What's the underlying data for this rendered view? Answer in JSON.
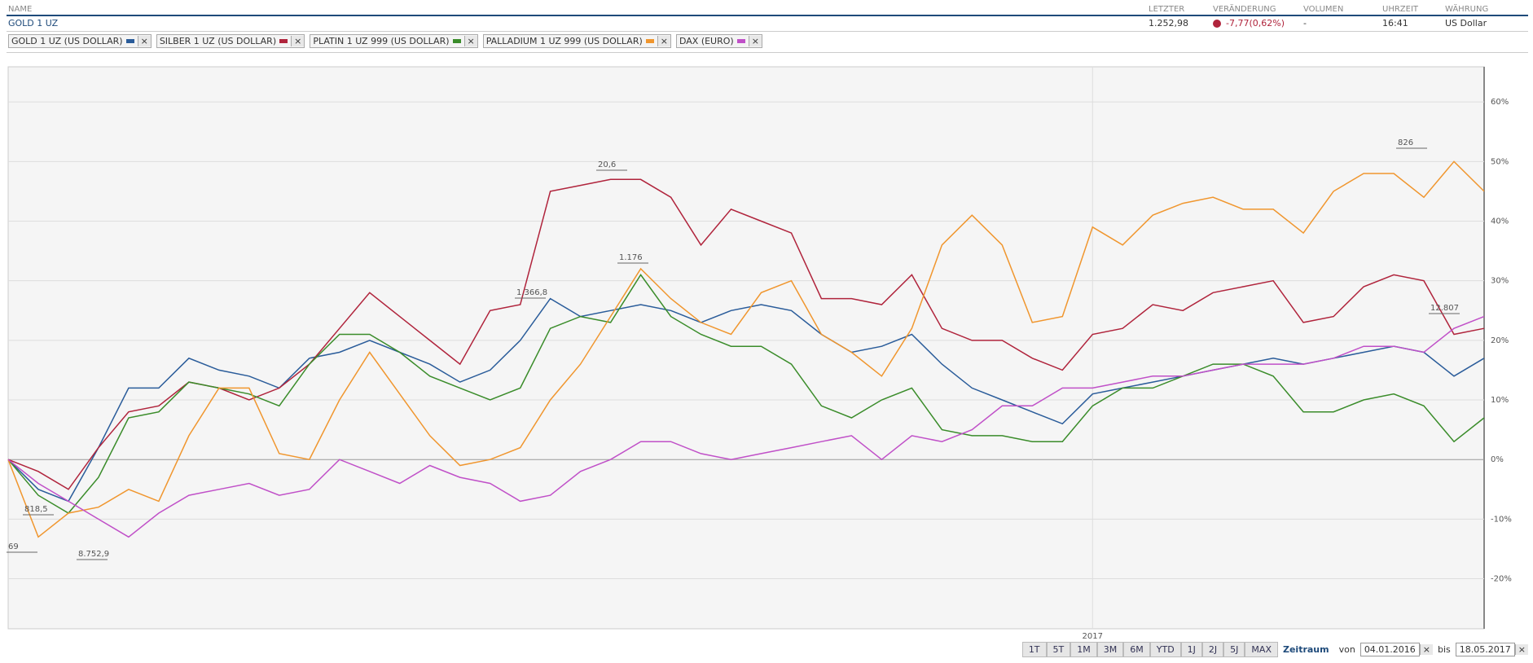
{
  "header": {
    "columns": [
      "NAME",
      "LETZTER",
      "VERÄNDERUNG",
      "VOLUMEN",
      "UHRZEIT",
      "WÄHRUNG"
    ],
    "row": [
      "GOLD 1 UZ",
      "1.252,98",
      "-7,77(0,62%)",
      "-",
      "16:41",
      "US Dollar"
    ]
  },
  "chart_data": {
    "type": "line",
    "categories": [
      null,
      null,
      null,
      null,
      null,
      null,
      null,
      null,
      null,
      null,
      null,
      null,
      null,
      null,
      null,
      null,
      null,
      null,
      null,
      null,
      null,
      null,
      null,
      null,
      null,
      null,
      null,
      null,
      null,
      null,
      null,
      null,
      null,
      null,
      null,
      null,
      "2017",
      null,
      null,
      null,
      null,
      null,
      null,
      null,
      null,
      null,
      null,
      null,
      null,
      null
    ],
    "series": [
      {
        "name": "GOLD 1 UZ (US DOLLAR)",
        "color": "#2a5c9a",
        "values": [
          0,
          -5,
          -7,
          2,
          12,
          12,
          17,
          15,
          14,
          12,
          17,
          18,
          20,
          18,
          16,
          13,
          15,
          20,
          27,
          24,
          25,
          26,
          25,
          23,
          25,
          26,
          25,
          21,
          18,
          19,
          21,
          16,
          12,
          10,
          8,
          6,
          11,
          12,
          13,
          14,
          15,
          16,
          17,
          16,
          17,
          18,
          19,
          18,
          14,
          17
        ]
      },
      {
        "name": "SILBER 1 UZ (US DOLLAR)",
        "color": "#b0243c",
        "values": [
          0,
          -2,
          -5,
          2,
          8,
          9,
          13,
          12,
          10,
          12,
          16,
          22,
          28,
          24,
          20,
          16,
          25,
          26,
          45,
          46,
          47,
          47,
          44,
          36,
          42,
          40,
          38,
          27,
          27,
          26,
          31,
          22,
          20,
          20,
          17,
          15,
          21,
          22,
          26,
          25,
          28,
          29,
          30,
          23,
          24,
          29,
          31,
          30,
          21,
          22
        ]
      },
      {
        "name": "PLATIN 1 UZ 999 (US DOLLAR)",
        "color": "#3a8c2a",
        "values": [
          0,
          -6,
          -9,
          -3,
          7,
          8,
          13,
          12,
          11,
          9,
          16,
          21,
          21,
          18,
          14,
          12,
          10,
          12,
          22,
          24,
          23,
          31,
          24,
          21,
          19,
          19,
          16,
          9,
          7,
          10,
          12,
          5,
          4,
          4,
          3,
          3,
          9,
          12,
          12,
          14,
          16,
          16,
          14,
          8,
          8,
          10,
          11,
          9,
          3,
          7
        ]
      },
      {
        "name": "PALLADIUM 1 UZ 999 (US DOLLAR)",
        "color": "#f0962e",
        "values": [
          0,
          -13,
          -9,
          -8,
          -5,
          -7,
          4,
          12,
          12,
          1,
          0,
          10,
          18,
          11,
          4,
          -1,
          0,
          2,
          10,
          16,
          24,
          32,
          27,
          23,
          21,
          28,
          30,
          21,
          18,
          14,
          22,
          36,
          41,
          36,
          23,
          24,
          39,
          36,
          41,
          43,
          44,
          42,
          42,
          38,
          45,
          48,
          48,
          44,
          50,
          45
        ]
      },
      {
        "name": "DAX (EURO)",
        "color": "#c050c8",
        "values": [
          0,
          -4,
          -7,
          -10,
          -13,
          -9,
          -6,
          -5,
          -4,
          -6,
          -5,
          0,
          -2,
          -4,
          -1,
          -3,
          -4,
          -7,
          -6,
          -2,
          0,
          3,
          3,
          1,
          0,
          1,
          2,
          3,
          4,
          0,
          4,
          3,
          5,
          9,
          9,
          12,
          12,
          13,
          14,
          14,
          15,
          16,
          16,
          16,
          17,
          19,
          19,
          18,
          22,
          24
        ]
      }
    ],
    "ylim": [
      -28.4,
      65.9
    ],
    "yticks": [
      {
        "value": -20,
        "label": "-20%"
      },
      {
        "value": -10,
        "label": "-10%"
      },
      {
        "value": 0,
        "label": "0%"
      },
      {
        "value": 10,
        "label": "10%"
      },
      {
        "value": 20,
        "label": "20%"
      },
      {
        "value": 30,
        "label": "30%"
      },
      {
        "value": 40,
        "label": "40%"
      },
      {
        "value": 50,
        "label": "50%"
      },
      {
        "value": 60,
        "label": "60%"
      }
    ],
    "grid": true,
    "annotations": [
      "20,6",
      "1.176",
      "1.366,8",
      "826",
      "12.807",
      "818,5",
      "8.752,9",
      "69"
    ]
  },
  "controls": {
    "ranges": [
      "1T",
      "5T",
      "1M",
      "3M",
      "6M",
      "YTD",
      "1J",
      "2J",
      "5J",
      "MAX"
    ],
    "period": "Zeitraum",
    "from_label": "von",
    "from": "04.01.2016",
    "to_label": "bis",
    "to": "18.05.2017"
  }
}
